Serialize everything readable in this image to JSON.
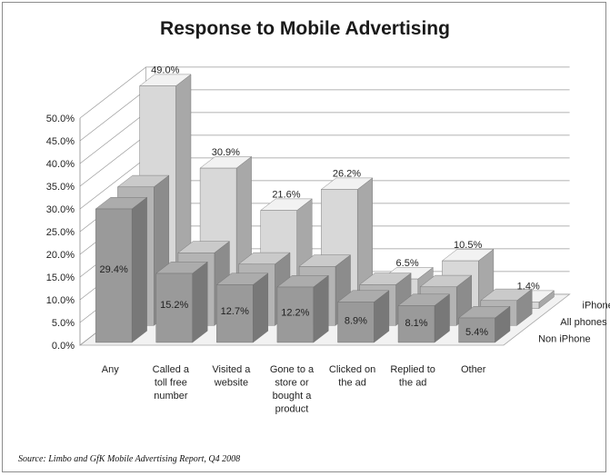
{
  "chart_data": {
    "type": "bar",
    "title": "Response to Mobile Advertising",
    "categories": [
      "Any",
      "Called a toll free number",
      "Visited a website",
      "Gone to a store or bought a product",
      "Clicked on the ad",
      "Replied to the ad",
      "Other"
    ],
    "category_lines": [
      [
        "Any"
      ],
      [
        "Called a",
        "toll free",
        "number"
      ],
      [
        "Visited a",
        "website"
      ],
      [
        "Gone to a",
        "store or",
        "bought a",
        "product"
      ],
      [
        "Clicked on",
        "the ad"
      ],
      [
        "Replied to",
        "the ad"
      ],
      [
        "Other"
      ]
    ],
    "series": [
      {
        "name": "iPhone",
        "values": [
          49.0,
          30.9,
          21.6,
          26.2,
          6.5,
          10.5,
          1.4
        ],
        "labels": [
          "49.0%",
          "30.9%",
          "21.6%",
          "26.2%",
          "6.5%",
          "10.5%",
          "1.4%"
        ]
      },
      {
        "name": "All phones",
        "values": [
          30.5,
          16.0,
          13.5,
          13.0,
          9.0,
          8.5,
          5.5
        ],
        "labels": []
      },
      {
        "name": "Non iPhone",
        "values": [
          29.4,
          15.2,
          12.7,
          12.2,
          8.9,
          8.1,
          5.4
        ],
        "labels": [
          "29.4%",
          "15.2%",
          "12.7%",
          "12.2%",
          "8.9%",
          "8.1%",
          "5.4%"
        ]
      }
    ],
    "ylim": [
      0,
      50
    ],
    "y_ticks": [
      "0.0%",
      "5.0%",
      "10.0%",
      "15.0%",
      "20.0%",
      "25.0%",
      "30.0%",
      "35.0%",
      "40.0%",
      "45.0%",
      "50.0%"
    ],
    "grid": true,
    "legend_placement": "right",
    "projection": "3d",
    "colors": {
      "iPhone": "#d8d8d8",
      "All phones": "#b4b4b4",
      "Non iPhone": "#9a9a9a"
    }
  },
  "source": "Source: Limbo and GfK Mobile Advertising Report, Q4 2008"
}
